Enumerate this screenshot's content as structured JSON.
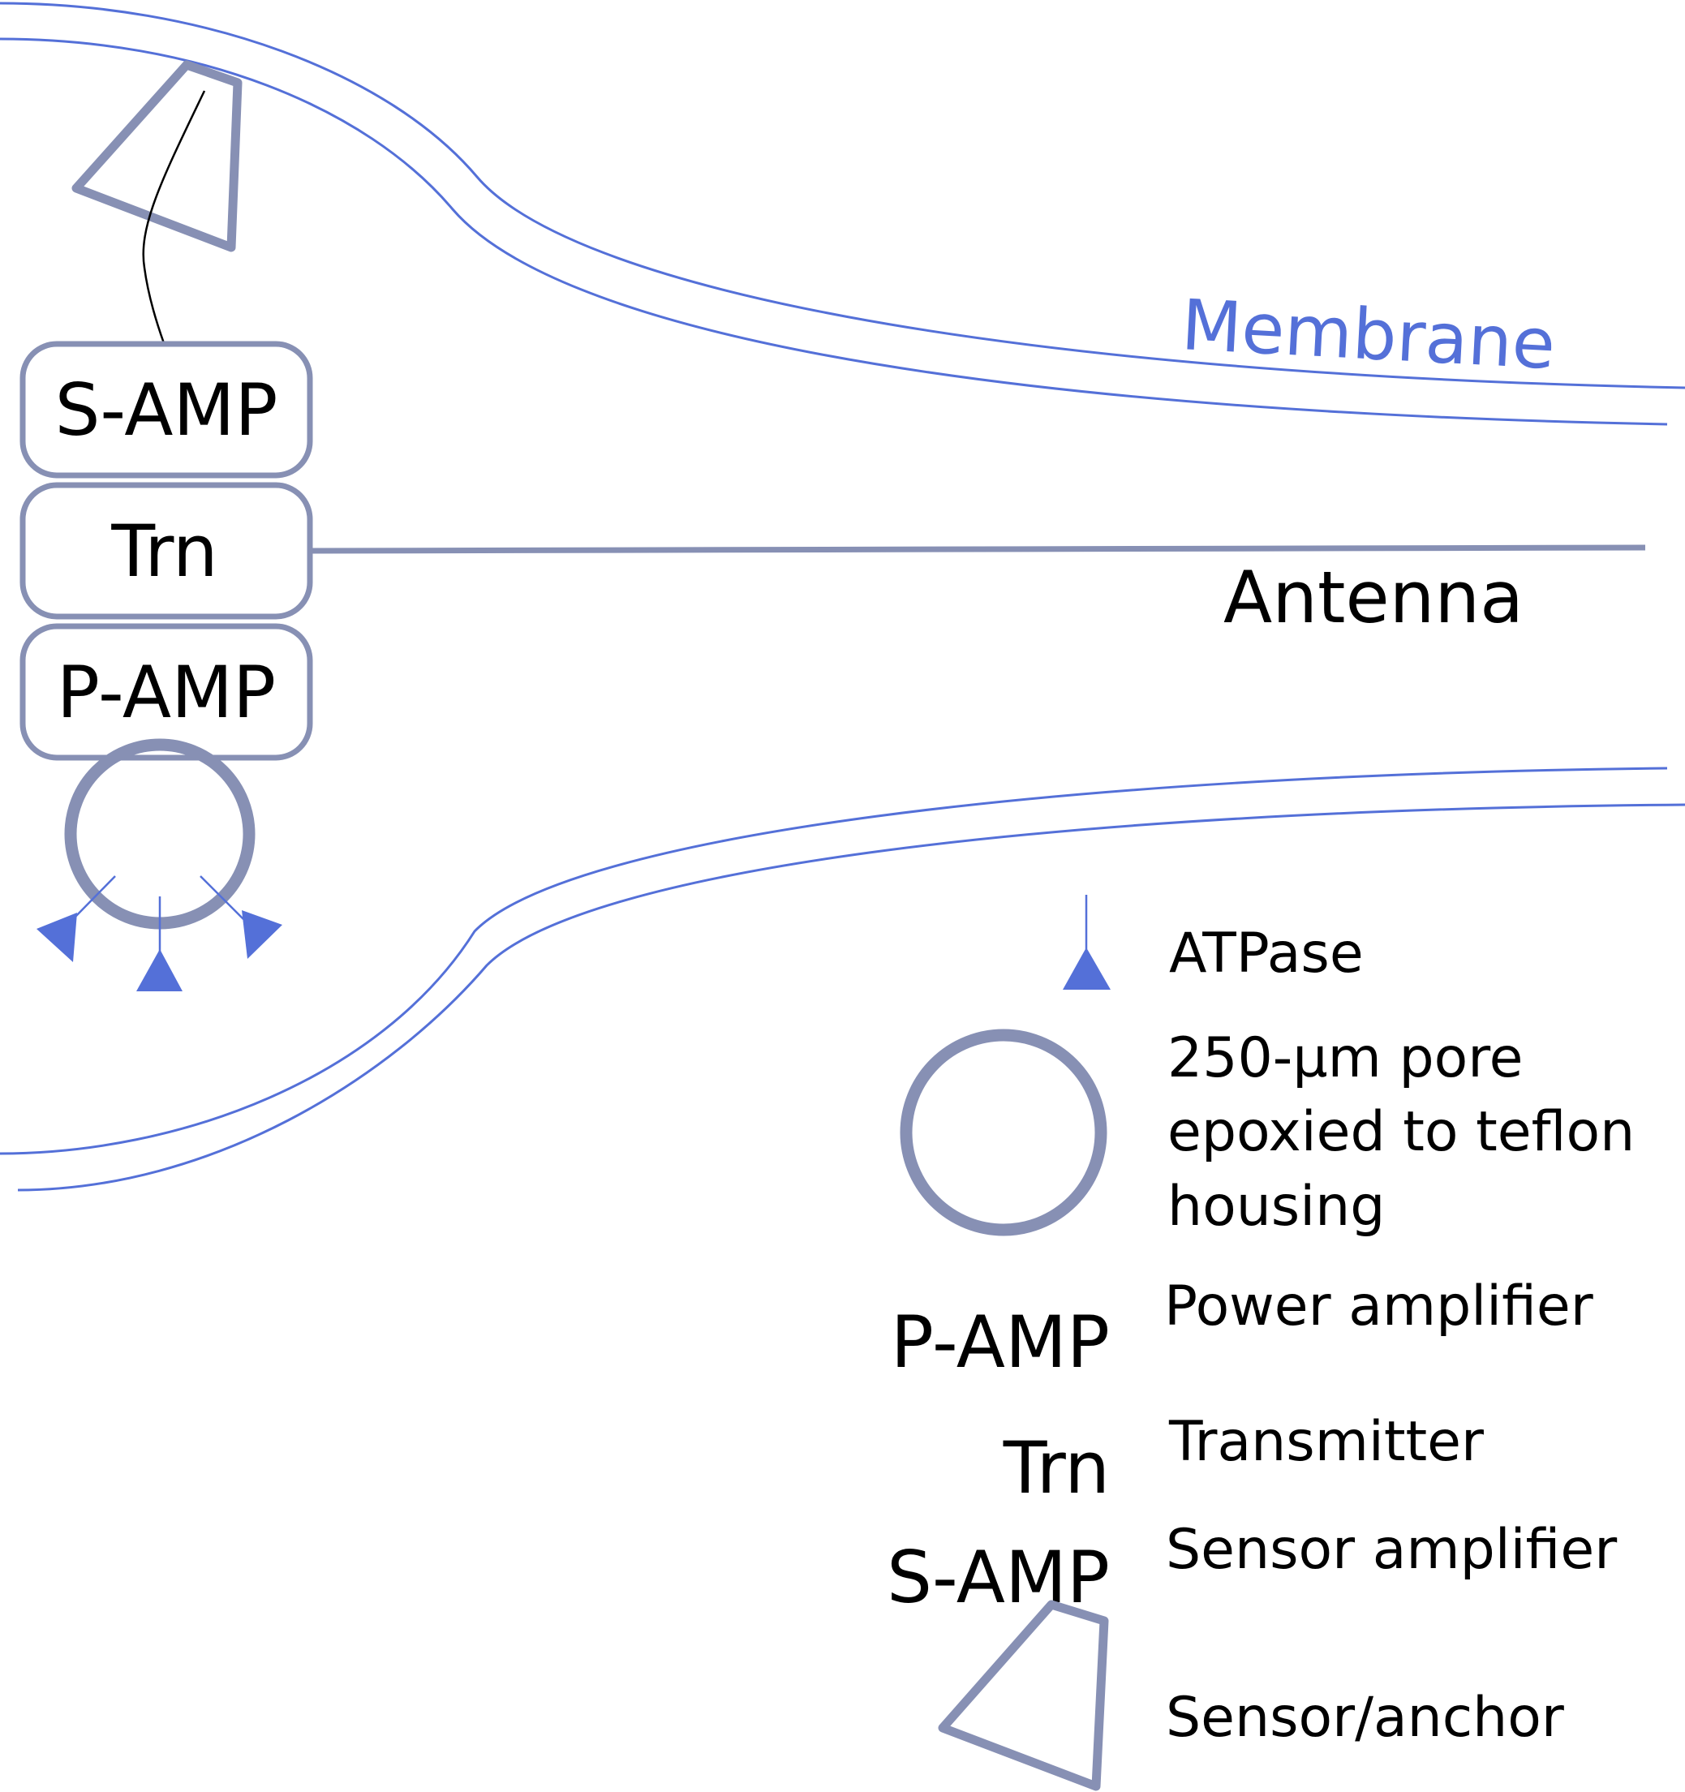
{
  "diagram": {
    "membrane_label": "Membrane",
    "antenna_label": "Antenna",
    "modules": {
      "sensor_amp": "S-AMP",
      "transmitter": "Trn",
      "power_amp": "P-AMP"
    }
  },
  "legend": {
    "atpase": "ATPase",
    "pore_line1": "250-µm pore",
    "pore_line2": "epoxied to teflon",
    "pore_line3": "housing",
    "power_amp_abbr": "P-AMP",
    "power_amp": "Power amplifier",
    "transmitter_abbr": "Trn",
    "transmitter": "Transmitter",
    "sensor_amp_abbr": "S-AMP",
    "sensor_amp": "Sensor amplifier",
    "sensor_anchor": "Sensor/anchor"
  },
  "colors": {
    "membrane": "#5470d8",
    "device_outline": "#8790b4",
    "text": "#000000"
  }
}
